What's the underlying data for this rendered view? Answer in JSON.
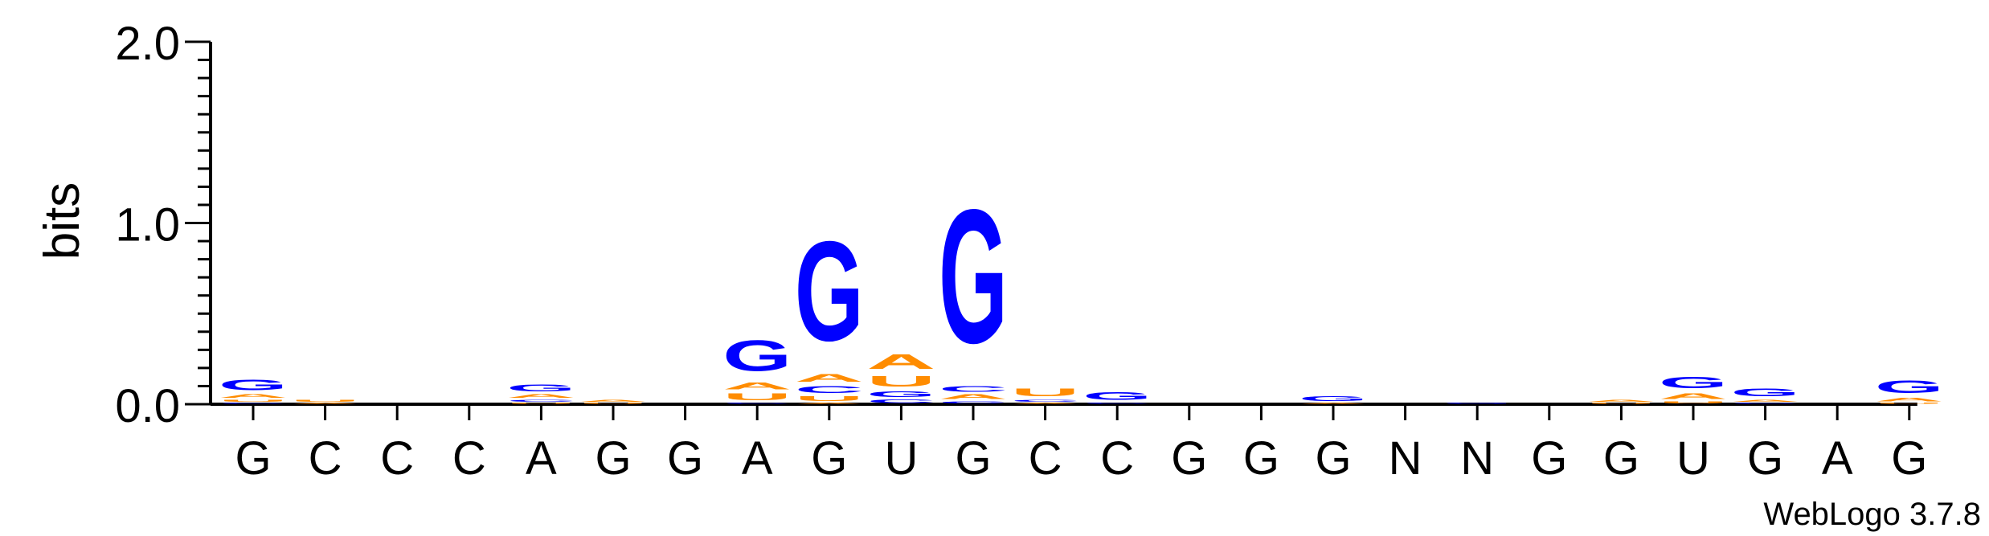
{
  "chart_data": {
    "type": "sequence-logo",
    "ylabel": "bits",
    "ylim": [
      0,
      2.0
    ],
    "yticks": [
      {
        "value": 0.0,
        "label": "0.0"
      },
      {
        "value": 1.0,
        "label": "1.0"
      },
      {
        "value": 2.0,
        "label": "2.0"
      }
    ],
    "positions": [
      "G",
      "C",
      "C",
      "C",
      "A",
      "G",
      "G",
      "A",
      "G",
      "U",
      "G",
      "C",
      "C",
      "G",
      "G",
      "G",
      "N",
      "N",
      "G",
      "G",
      "U",
      "G",
      "A",
      "G"
    ],
    "colors": {
      "G": "#0000ff",
      "A": "#ff8c00",
      "U": "#ff8c00",
      "C": "#0000ff"
    },
    "stacks": [
      [
        {
          "letter": "C",
          "bits": 0.01
        },
        {
          "letter": "U",
          "bits": 0.02
        },
        {
          "letter": "A",
          "bits": 0.03
        },
        {
          "letter": "G",
          "bits": 0.09
        }
      ],
      [
        {
          "letter": "A",
          "bits": 0.01
        },
        {
          "letter": "U",
          "bits": 0.02
        }
      ],
      [],
      [],
      [
        {
          "letter": "U",
          "bits": 0.01
        },
        {
          "letter": "C",
          "bits": 0.02
        },
        {
          "letter": "A",
          "bits": 0.03
        },
        {
          "letter": "G",
          "bits": 0.06
        }
      ],
      [
        {
          "letter": "U",
          "bits": 0.01
        },
        {
          "letter": "A",
          "bits": 0.02
        }
      ],
      [],
      [
        {
          "letter": "C",
          "bits": 0.01
        },
        {
          "letter": "U",
          "bits": 0.06
        },
        {
          "letter": "A",
          "bits": 0.06
        },
        {
          "letter": "G",
          "bits": 0.27
        }
      ],
      [
        {
          "letter": "A",
          "bits": 0.01
        },
        {
          "letter": "U",
          "bits": 0.04
        },
        {
          "letter": "C",
          "bits": 0.06
        },
        {
          "letter": "A",
          "bits": 0.07
        },
        {
          "letter": "G",
          "bits": 0.88
        }
      ],
      [
        {
          "letter": "C",
          "bits": 0.03
        },
        {
          "letter": "G",
          "bits": 0.05
        },
        {
          "letter": "U",
          "bits": 0.09
        },
        {
          "letter": "A",
          "bits": 0.13
        }
      ],
      [
        {
          "letter": "C",
          "bits": 0.02
        },
        {
          "letter": "A",
          "bits": 0.04
        },
        {
          "letter": "C",
          "bits": 0.05
        },
        {
          "letter": "G",
          "bits": 1.18
        }
      ],
      [
        {
          "letter": "A",
          "bits": 0.01
        },
        {
          "letter": "C",
          "bits": 0.02
        },
        {
          "letter": "U",
          "bits": 0.07
        }
      ],
      [
        {
          "letter": "C",
          "bits": 0.01
        },
        {
          "letter": "G",
          "bits": 0.07
        }
      ],
      [],
      [],
      [
        {
          "letter": "A",
          "bits": 0.01
        },
        {
          "letter": "G",
          "bits": 0.04
        }
      ],
      [],
      [
        {
          "letter": "G",
          "bits": 0.01
        }
      ],
      [],
      [
        {
          "letter": "U",
          "bits": 0.01
        },
        {
          "letter": "A",
          "bits": 0.02
        }
      ],
      [
        {
          "letter": "U",
          "bits": 0.02
        },
        {
          "letter": "A",
          "bits": 0.05
        },
        {
          "letter": "G",
          "bits": 0.1
        }
      ],
      [
        {
          "letter": "C",
          "bits": 0.01
        },
        {
          "letter": "A",
          "bits": 0.02
        },
        {
          "letter": "G",
          "bits": 0.07
        }
      ],
      [],
      [
        {
          "letter": "U",
          "bits": 0.01
        },
        {
          "letter": "A",
          "bits": 0.03
        },
        {
          "letter": "G",
          "bits": 0.11
        }
      ]
    ]
  },
  "footer": {
    "credit": "WebLogo 3.7.8"
  }
}
